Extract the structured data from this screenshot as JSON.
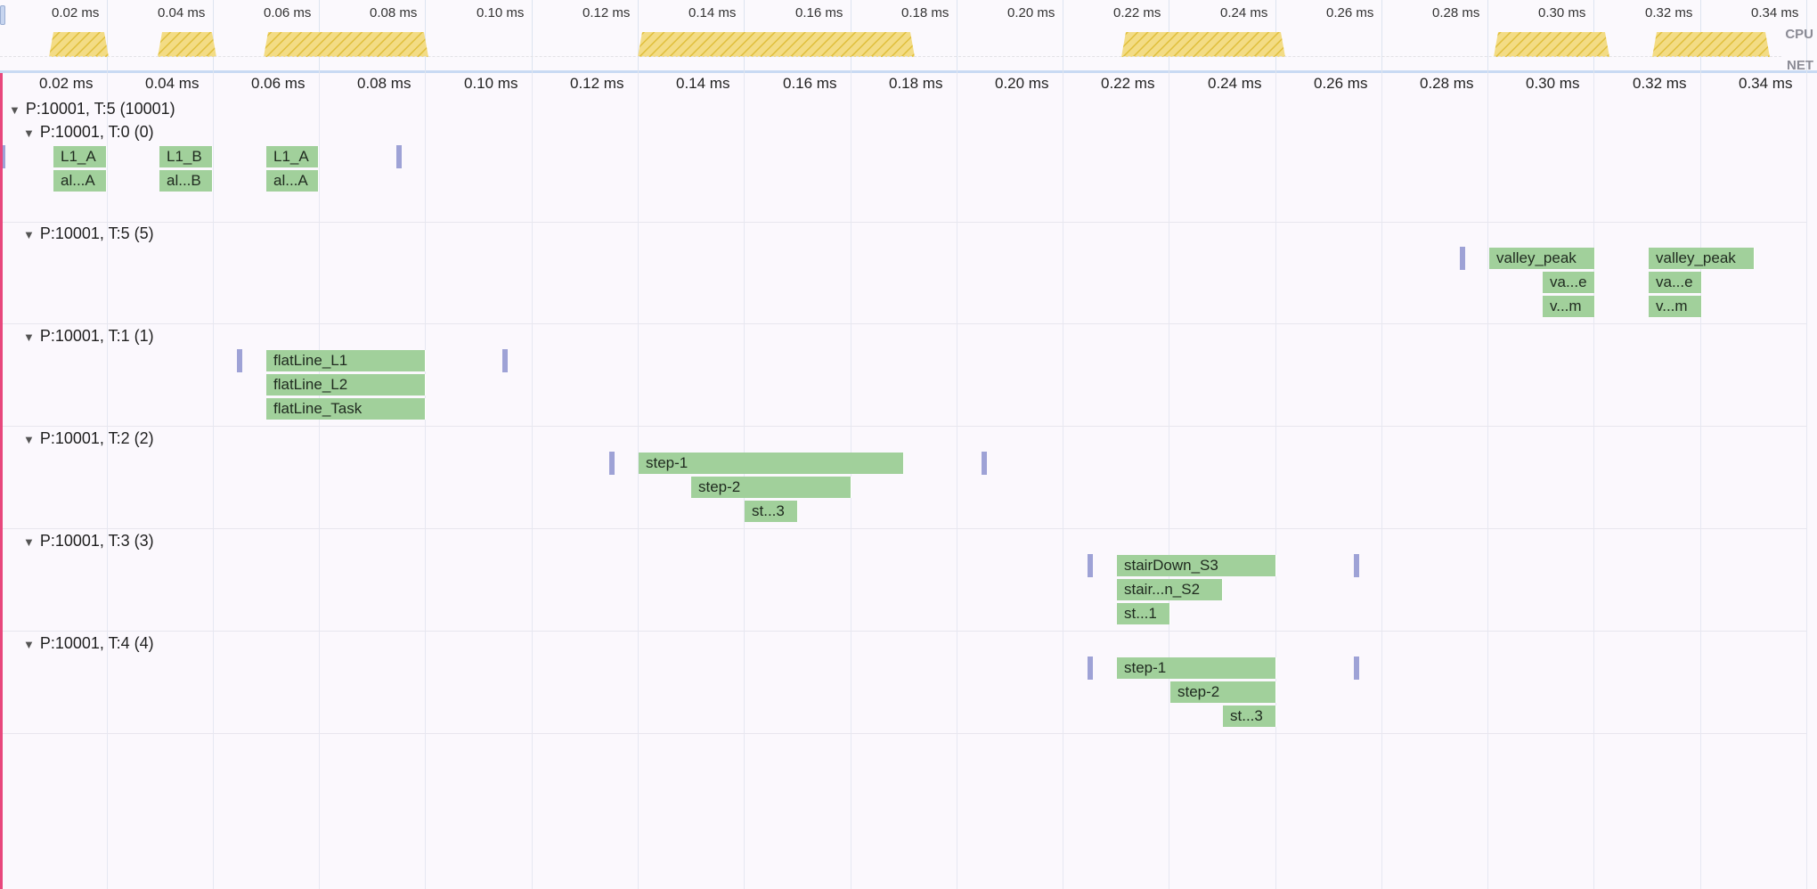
{
  "overview": {
    "ticks": [
      "0.02 ms",
      "0.04 ms",
      "0.06 ms",
      "0.08 ms",
      "0.10 ms",
      "0.12 ms",
      "0.14 ms",
      "0.16 ms",
      "0.18 ms",
      "0.20 ms",
      "0.22 ms",
      "0.24 ms",
      "0.26 ms",
      "0.28 ms",
      "0.30 ms",
      "0.32 ms",
      "0.34 ms"
    ],
    "lanes": {
      "cpu": "CPU",
      "net": "NET"
    },
    "cpu_color": "#ecc94b"
  },
  "ruler": {
    "ticks": [
      "0.02 ms",
      "0.04 ms",
      "0.06 ms",
      "0.08 ms",
      "0.10 ms",
      "0.12 ms",
      "0.14 ms",
      "0.16 ms",
      "0.18 ms",
      "0.20 ms",
      "0.22 ms",
      "0.24 ms",
      "0.26 ms",
      "0.28 ms",
      "0.30 ms",
      "0.32 ms",
      "0.34 ms"
    ]
  },
  "process": {
    "label": "P:10001, T:5 (10001)"
  },
  "threads": [
    {
      "label": "P:10001, T:0 (0)",
      "slices": [
        {
          "name": "L1_A",
          "start": 0.01,
          "end": 0.02,
          "depth": 0
        },
        {
          "name": "al...A",
          "start": 0.01,
          "end": 0.02,
          "depth": 1
        },
        {
          "name": "L1_B",
          "start": 0.03,
          "end": 0.04,
          "depth": 0
        },
        {
          "name": "al...B",
          "start": 0.03,
          "end": 0.04,
          "depth": 1
        },
        {
          "name": "L1_A",
          "start": 0.05,
          "end": 0.06,
          "depth": 0
        },
        {
          "name": "al...A",
          "start": 0.05,
          "end": 0.06,
          "depth": 1
        }
      ],
      "markers": [
        0.0,
        0.07
      ]
    },
    {
      "label": "P:10001, T:5 (5)",
      "slices": [
        {
          "name": "valley_peak",
          "start": 0.28,
          "end": 0.3,
          "depth": 0
        },
        {
          "name": "va...e",
          "start": 0.29,
          "end": 0.3,
          "depth": 1
        },
        {
          "name": "v...m",
          "start": 0.29,
          "end": 0.3,
          "depth": 2
        },
        {
          "name": "valley_peak",
          "start": 0.31,
          "end": 0.33,
          "depth": 0
        },
        {
          "name": "va...e",
          "start": 0.31,
          "end": 0.32,
          "depth": 1
        },
        {
          "name": "v...m",
          "start": 0.31,
          "end": 0.32,
          "depth": 2
        }
      ],
      "markers": [
        0.27
      ]
    },
    {
      "label": "P:10001, T:1 (1)",
      "slices": [
        {
          "name": "flatLine_L1",
          "start": 0.05,
          "end": 0.08,
          "depth": 0
        },
        {
          "name": "flatLine_L2",
          "start": 0.05,
          "end": 0.08,
          "depth": 1
        },
        {
          "name": "flatLine_Task",
          "start": 0.05,
          "end": 0.08,
          "depth": 2
        }
      ],
      "markers": [
        0.04,
        0.09
      ]
    },
    {
      "label": "P:10001, T:2 (2)",
      "slices": [
        {
          "name": "step-1",
          "start": 0.12,
          "end": 0.17,
          "depth": 0
        },
        {
          "name": "step-2",
          "start": 0.13,
          "end": 0.16,
          "depth": 1
        },
        {
          "name": "st...3",
          "start": 0.14,
          "end": 0.15,
          "depth": 2
        }
      ],
      "markers": [
        0.11,
        0.18
      ]
    },
    {
      "label": "P:10001, T:3 (3)",
      "slices": [
        {
          "name": "stairDown_S3",
          "start": 0.21,
          "end": 0.24,
          "depth": 0
        },
        {
          "name": "stair...n_S2",
          "start": 0.21,
          "end": 0.23,
          "depth": 1
        },
        {
          "name": "st...1",
          "start": 0.21,
          "end": 0.22,
          "depth": 2
        }
      ],
      "markers": [
        0.2,
        0.25
      ]
    },
    {
      "label": "P:10001, T:4 (4)",
      "slices": [
        {
          "name": "step-1",
          "start": 0.21,
          "end": 0.24,
          "depth": 0
        },
        {
          "name": "step-2",
          "start": 0.22,
          "end": 0.24,
          "depth": 1
        },
        {
          "name": "st...3",
          "start": 0.23,
          "end": 0.24,
          "depth": 2
        }
      ],
      "markers": [
        0.2,
        0.25
      ]
    }
  ],
  "cpu_activity": [
    [
      0.01,
      0.02
    ],
    [
      0.03,
      0.04
    ],
    [
      0.05,
      0.08
    ],
    [
      0.12,
      0.17
    ],
    [
      0.21,
      0.24
    ],
    [
      0.28,
      0.3
    ],
    [
      0.31,
      0.33
    ]
  ]
}
